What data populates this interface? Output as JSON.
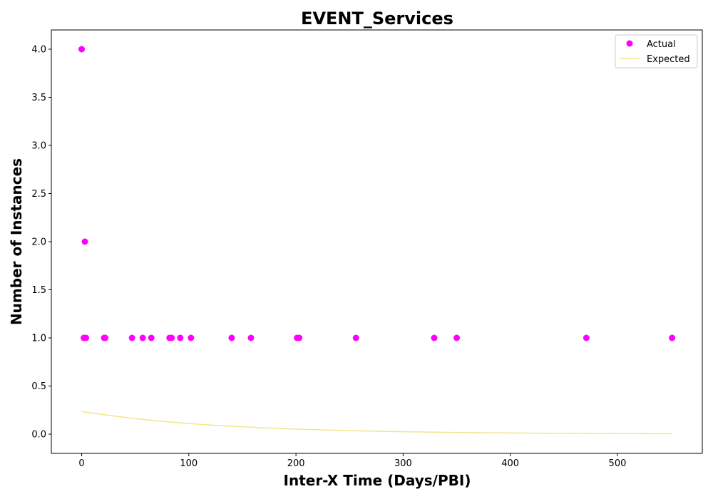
{
  "chart_data": {
    "type": "scatter",
    "title": "EVENT_Services",
    "xlabel": "Inter-X Time (Days/PBI)",
    "ylabel": "Number of Instances",
    "xlim": [
      -28.3,
      579.2
    ],
    "ylim": [
      -0.2,
      4.2
    ],
    "xticks": [
      0,
      100,
      200,
      300,
      400,
      500
    ],
    "yticks": [
      0.0,
      0.5,
      1.0,
      1.5,
      2.0,
      2.5,
      3.0,
      3.5,
      4.0
    ],
    "xtick_labels": [
      "0",
      "100",
      "200",
      "300",
      "400",
      "500"
    ],
    "ytick_labels": [
      "0.0",
      "0.5",
      "1.0",
      "1.5",
      "2.0",
      "2.5",
      "3.0",
      "3.5",
      "4.0"
    ],
    "grid": false,
    "legend": {
      "position": "top-right",
      "entries": [
        "Actual",
        "Expected"
      ]
    },
    "series": [
      {
        "name": "Actual",
        "type": "scatter",
        "color": "#ff00ff",
        "x": [
          0,
          2,
          3,
          4,
          21,
          22,
          47,
          57,
          65,
          82,
          84,
          92,
          102,
          140,
          158,
          201,
          203,
          256,
          329,
          350,
          471,
          551
        ],
        "y": [
          4,
          1,
          2,
          1,
          1,
          1,
          1,
          1,
          1,
          1,
          1,
          1,
          1,
          1,
          1,
          1,
          1,
          1,
          1,
          1,
          1,
          1
        ]
      },
      {
        "name": "Expected",
        "type": "line",
        "color": "#f0e68c",
        "x": [
          0,
          25,
          50,
          75,
          100,
          125,
          150,
          175,
          200,
          250,
          300,
          350,
          400,
          450,
          500,
          551
        ],
        "y": [
          0.235,
          0.195,
          0.161,
          0.133,
          0.11,
          0.091,
          0.076,
          0.063,
          0.052,
          0.036,
          0.025,
          0.017,
          0.012,
          0.008,
          0.006,
          0.004
        ]
      }
    ]
  }
}
